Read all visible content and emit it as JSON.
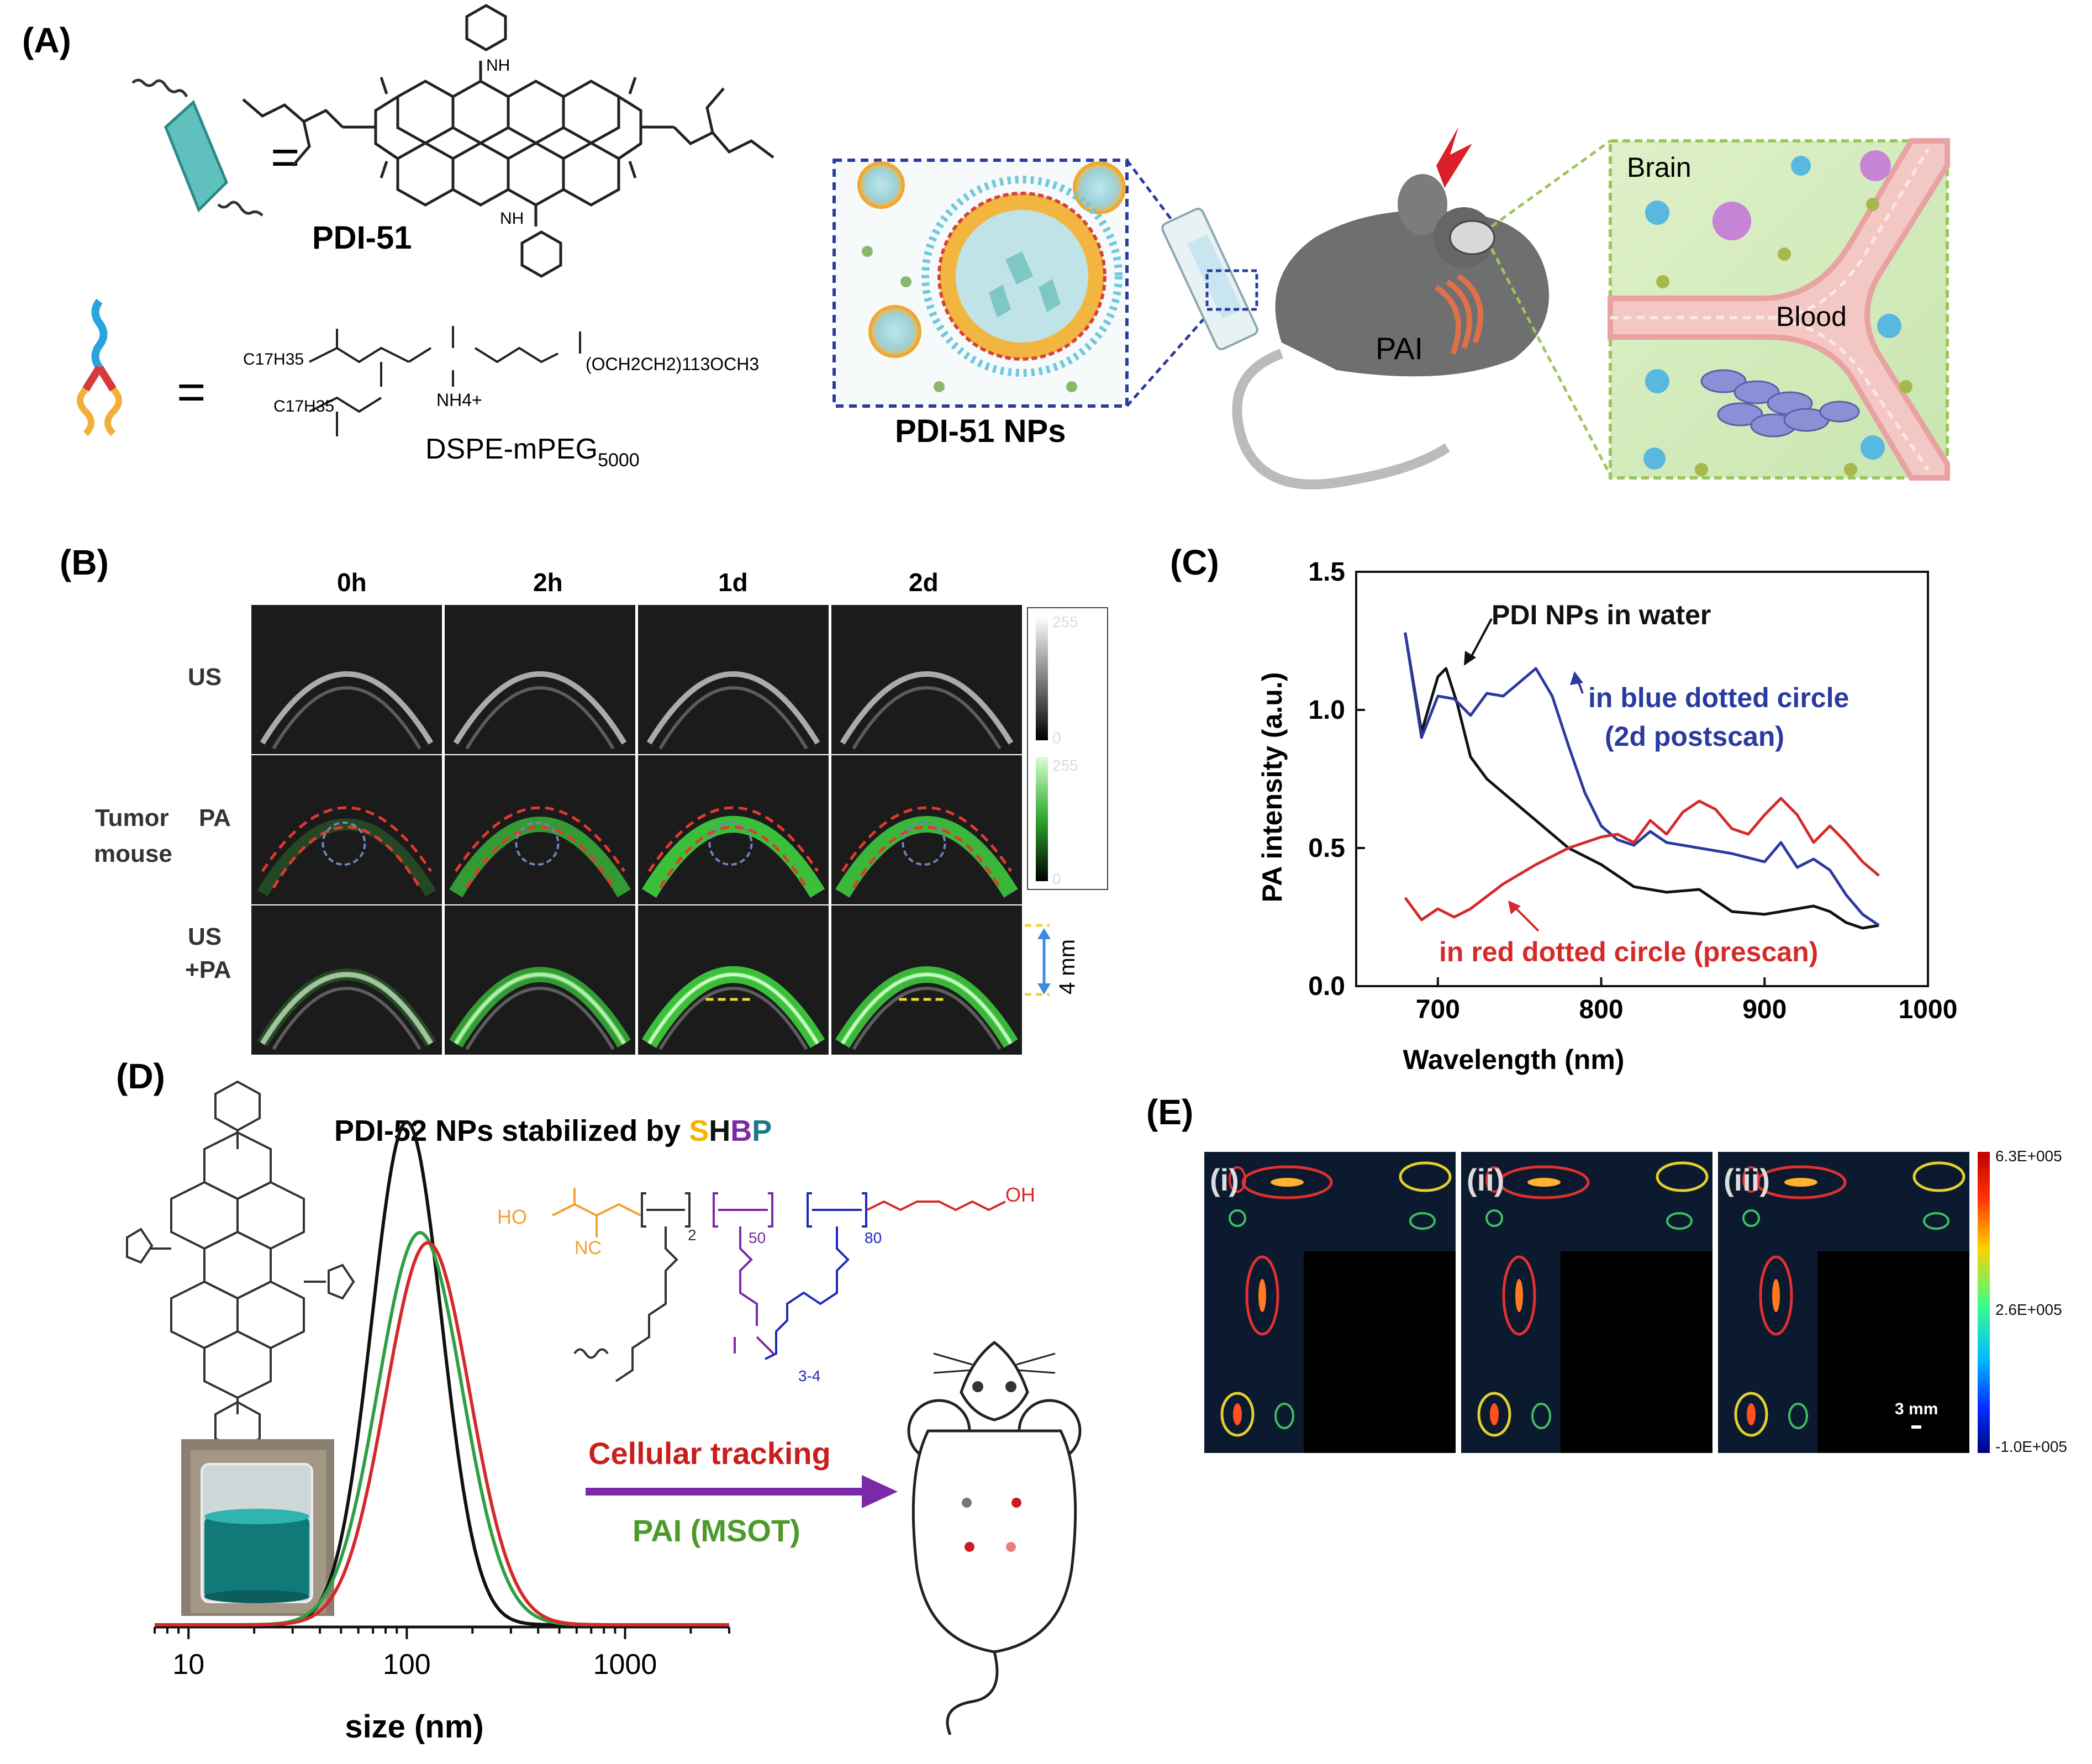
{
  "panel_labels": {
    "a": "(A)",
    "b": "(B)",
    "c": "(C)",
    "d": "(D)",
    "e": "(E)"
  },
  "panel_a": {
    "eq": "=",
    "pdi51_name": "PDI-51",
    "dspe_name": "DSPE-mPEG",
    "dspe_sub": "5000",
    "nh": "NH",
    "c17h35": "C17H35",
    "peg_chain": "(OCH2CH2)113OCH3",
    "nh4": "NH4+",
    "nps_label": "PDI-51 NPs",
    "pai_label": "PAI",
    "brain_label": "Brain",
    "blood_label": "Blood"
  },
  "panel_b": {
    "col_headers": [
      "0h",
      "2h",
      "1d",
      "2d"
    ],
    "row_us": "US",
    "row_pa": "PA",
    "row_tumor": "Tumor",
    "row_mouse": "mouse",
    "row_uspa_1": "US",
    "row_uspa_2": "+PA",
    "scale_top": "255",
    "scale_bottom": "0",
    "scale_bar": "4 mm"
  },
  "panel_c": {
    "chart_data": {
      "type": "line",
      "xlabel": "Wavelength (nm)",
      "ylabel": "PA intensity (a.u.)",
      "xlim": [
        650,
        1000
      ],
      "ylim": [
        0.0,
        1.5
      ],
      "xticks": [
        700,
        800,
        900,
        1000
      ],
      "yticks": [
        0.0,
        0.5,
        1.0,
        1.5
      ],
      "series": [
        {
          "name": "PDI NPs in water",
          "color": "#111111",
          "x": [
            680,
            690,
            700,
            705,
            712,
            720,
            730,
            740,
            760,
            780,
            800,
            820,
            840,
            860,
            880,
            900,
            920,
            930,
            940,
            950,
            960,
            970
          ],
          "y": [
            1.28,
            0.92,
            1.12,
            1.15,
            1.02,
            0.83,
            0.75,
            0.7,
            0.6,
            0.5,
            0.44,
            0.36,
            0.34,
            0.35,
            0.27,
            0.26,
            0.28,
            0.29,
            0.27,
            0.23,
            0.21,
            0.22
          ]
        },
        {
          "name": "in blue dotted circle",
          "name_line2": "(2d postscan)",
          "color": "#2b3a9e",
          "x": [
            680,
            690,
            700,
            710,
            720,
            730,
            740,
            750,
            760,
            770,
            780,
            790,
            800,
            810,
            820,
            830,
            840,
            860,
            880,
            900,
            910,
            920,
            930,
            940,
            950,
            960,
            970
          ],
          "y": [
            1.28,
            0.9,
            1.05,
            1.04,
            0.98,
            1.06,
            1.05,
            1.1,
            1.15,
            1.05,
            0.87,
            0.7,
            0.58,
            0.53,
            0.51,
            0.56,
            0.52,
            0.5,
            0.48,
            0.45,
            0.52,
            0.43,
            0.46,
            0.42,
            0.33,
            0.26,
            0.22
          ]
        },
        {
          "name": "in red dotted circle (prescan)",
          "color": "#d42a2a",
          "x": [
            680,
            690,
            700,
            710,
            720,
            740,
            760,
            780,
            800,
            810,
            820,
            830,
            840,
            850,
            860,
            870,
            880,
            890,
            900,
            910,
            920,
            930,
            940,
            950,
            960,
            970
          ],
          "y": [
            0.32,
            0.24,
            0.28,
            0.25,
            0.28,
            0.37,
            0.44,
            0.5,
            0.54,
            0.55,
            0.52,
            0.6,
            0.55,
            0.63,
            0.67,
            0.64,
            0.57,
            0.55,
            0.62,
            0.68,
            0.62,
            0.52,
            0.58,
            0.52,
            0.45,
            0.4
          ]
        }
      ]
    }
  },
  "panel_d": {
    "title_prefix": "PDI-52 NPs stabilized by ",
    "title_s": "S",
    "title_h": "H",
    "title_b": "B",
    "title_p": "P",
    "cellular_tracking": "Cellular tracking",
    "pai_msot": "PAI (MSOT)",
    "ho": "HO",
    "oh": "OH",
    "nc": "NC",
    "sub_2": "2",
    "sub_50": "50",
    "sub_80": "80",
    "sub_34": "3-4",
    "chart_data": {
      "type": "line",
      "xlabel": "size (nm)",
      "xscale": "log",
      "xlim": [
        7,
        3000
      ],
      "xticks": [
        10,
        100,
        1000
      ],
      "series": [
        {
          "color": "#111111",
          "peak_nm": 100,
          "relative_height": 1.0
        },
        {
          "color": "#2ea043",
          "peak_nm": 115,
          "relative_height": 0.78
        },
        {
          "color": "#d42a2a",
          "peak_nm": 125,
          "relative_height": 0.76
        }
      ]
    }
  },
  "panel_e": {
    "sub_labels": [
      "(i)",
      "(ii)",
      "(iii)"
    ],
    "colorbar_top": "6.3E+005",
    "colorbar_mid": "2.6E+005",
    "colorbar_bottom": "-1.0E+005",
    "scale_bar": "3 mm"
  }
}
